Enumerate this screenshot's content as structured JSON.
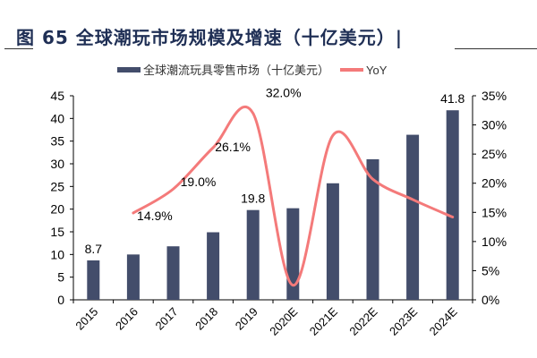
{
  "title": "图 65  全球潮玩市场规模及增速（十亿美元）|",
  "chart_data": {
    "type": "bar+line",
    "categories": [
      "2015",
      "2016",
      "2017",
      "2018",
      "2019",
      "2020E",
      "2021E",
      "2022E",
      "2023E",
      "2024E"
    ],
    "series": [
      {
        "name": "全球潮流玩具零售市场（十亿美元）",
        "type": "bar",
        "axis": "left",
        "color": "#434d6b",
        "values": [
          8.7,
          10.0,
          11.8,
          14.9,
          19.8,
          20.2,
          25.7,
          31.0,
          36.4,
          41.8
        ],
        "data_labels": {
          "0": "8.7",
          "4": "19.8",
          "9": "41.8"
        }
      },
      {
        "name": "YoY",
        "type": "line",
        "axis": "right",
        "color": "#f47a7a",
        "values": [
          null,
          14.9,
          19.0,
          26.1,
          32.0,
          2.5,
          28.2,
          20.7,
          17.2,
          14.2
        ],
        "data_labels": {
          "1": "14.9%",
          "2": "19.0%",
          "3": "26.1%",
          "4": "32.0%"
        }
      }
    ],
    "left_axis": {
      "ylim": [
        0,
        45
      ],
      "ticks": [
        "0",
        "5",
        "10",
        "15",
        "20",
        "25",
        "30",
        "35",
        "40",
        "45"
      ]
    },
    "right_axis": {
      "ylim": [
        0,
        35
      ],
      "ticks": [
        "0%",
        "5%",
        "10%",
        "15%",
        "20%",
        "25%",
        "30%",
        "35%"
      ]
    },
    "legend": "top",
    "grid": false
  }
}
